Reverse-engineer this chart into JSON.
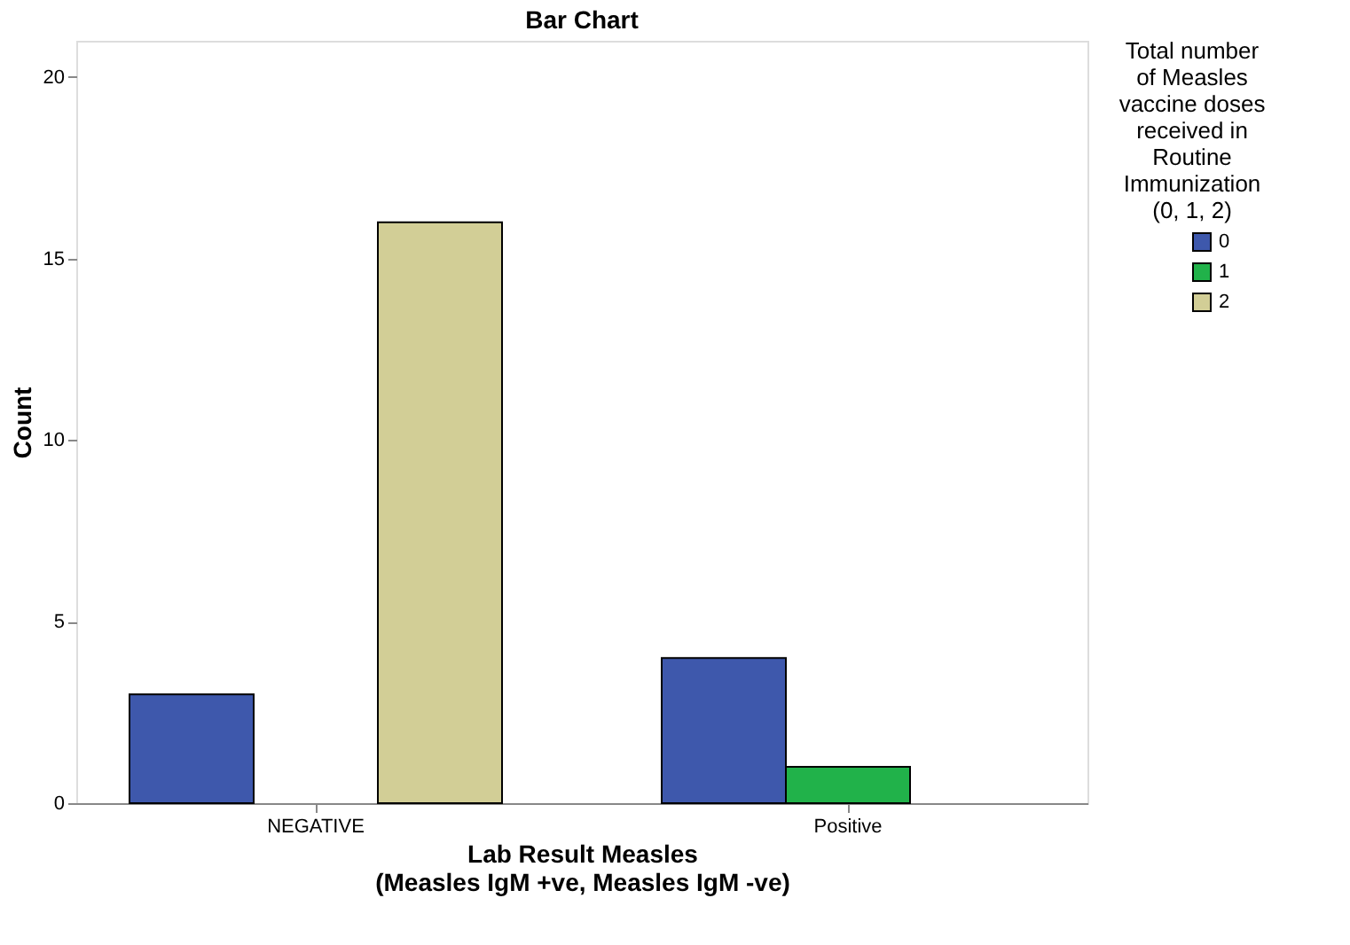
{
  "chart_data": {
    "type": "bar",
    "title": "Bar Chart",
    "xlabel": "Lab Result Measles\n(Measles IgM +ve, Measles IgM -ve)",
    "ylabel": "Count",
    "legend_title": "Total number\nof Measles\nvaccine doses\nreceived in\nRoutine\nImmunization\n(0, 1, 2)",
    "categories": [
      "NEGATIVE",
      "Positive"
    ],
    "series": [
      {
        "name": "0",
        "color": "#3e58ac",
        "values": [
          3,
          4
        ]
      },
      {
        "name": "1",
        "color": "#21b24a",
        "values": [
          null,
          1
        ]
      },
      {
        "name": "2",
        "color": "#d2ce96",
        "values": [
          16,
          null
        ]
      }
    ],
    "ylim": [
      0,
      21
    ],
    "yticks": [
      0,
      5,
      10,
      15,
      20
    ],
    "grid": false,
    "legend": "top right"
  }
}
